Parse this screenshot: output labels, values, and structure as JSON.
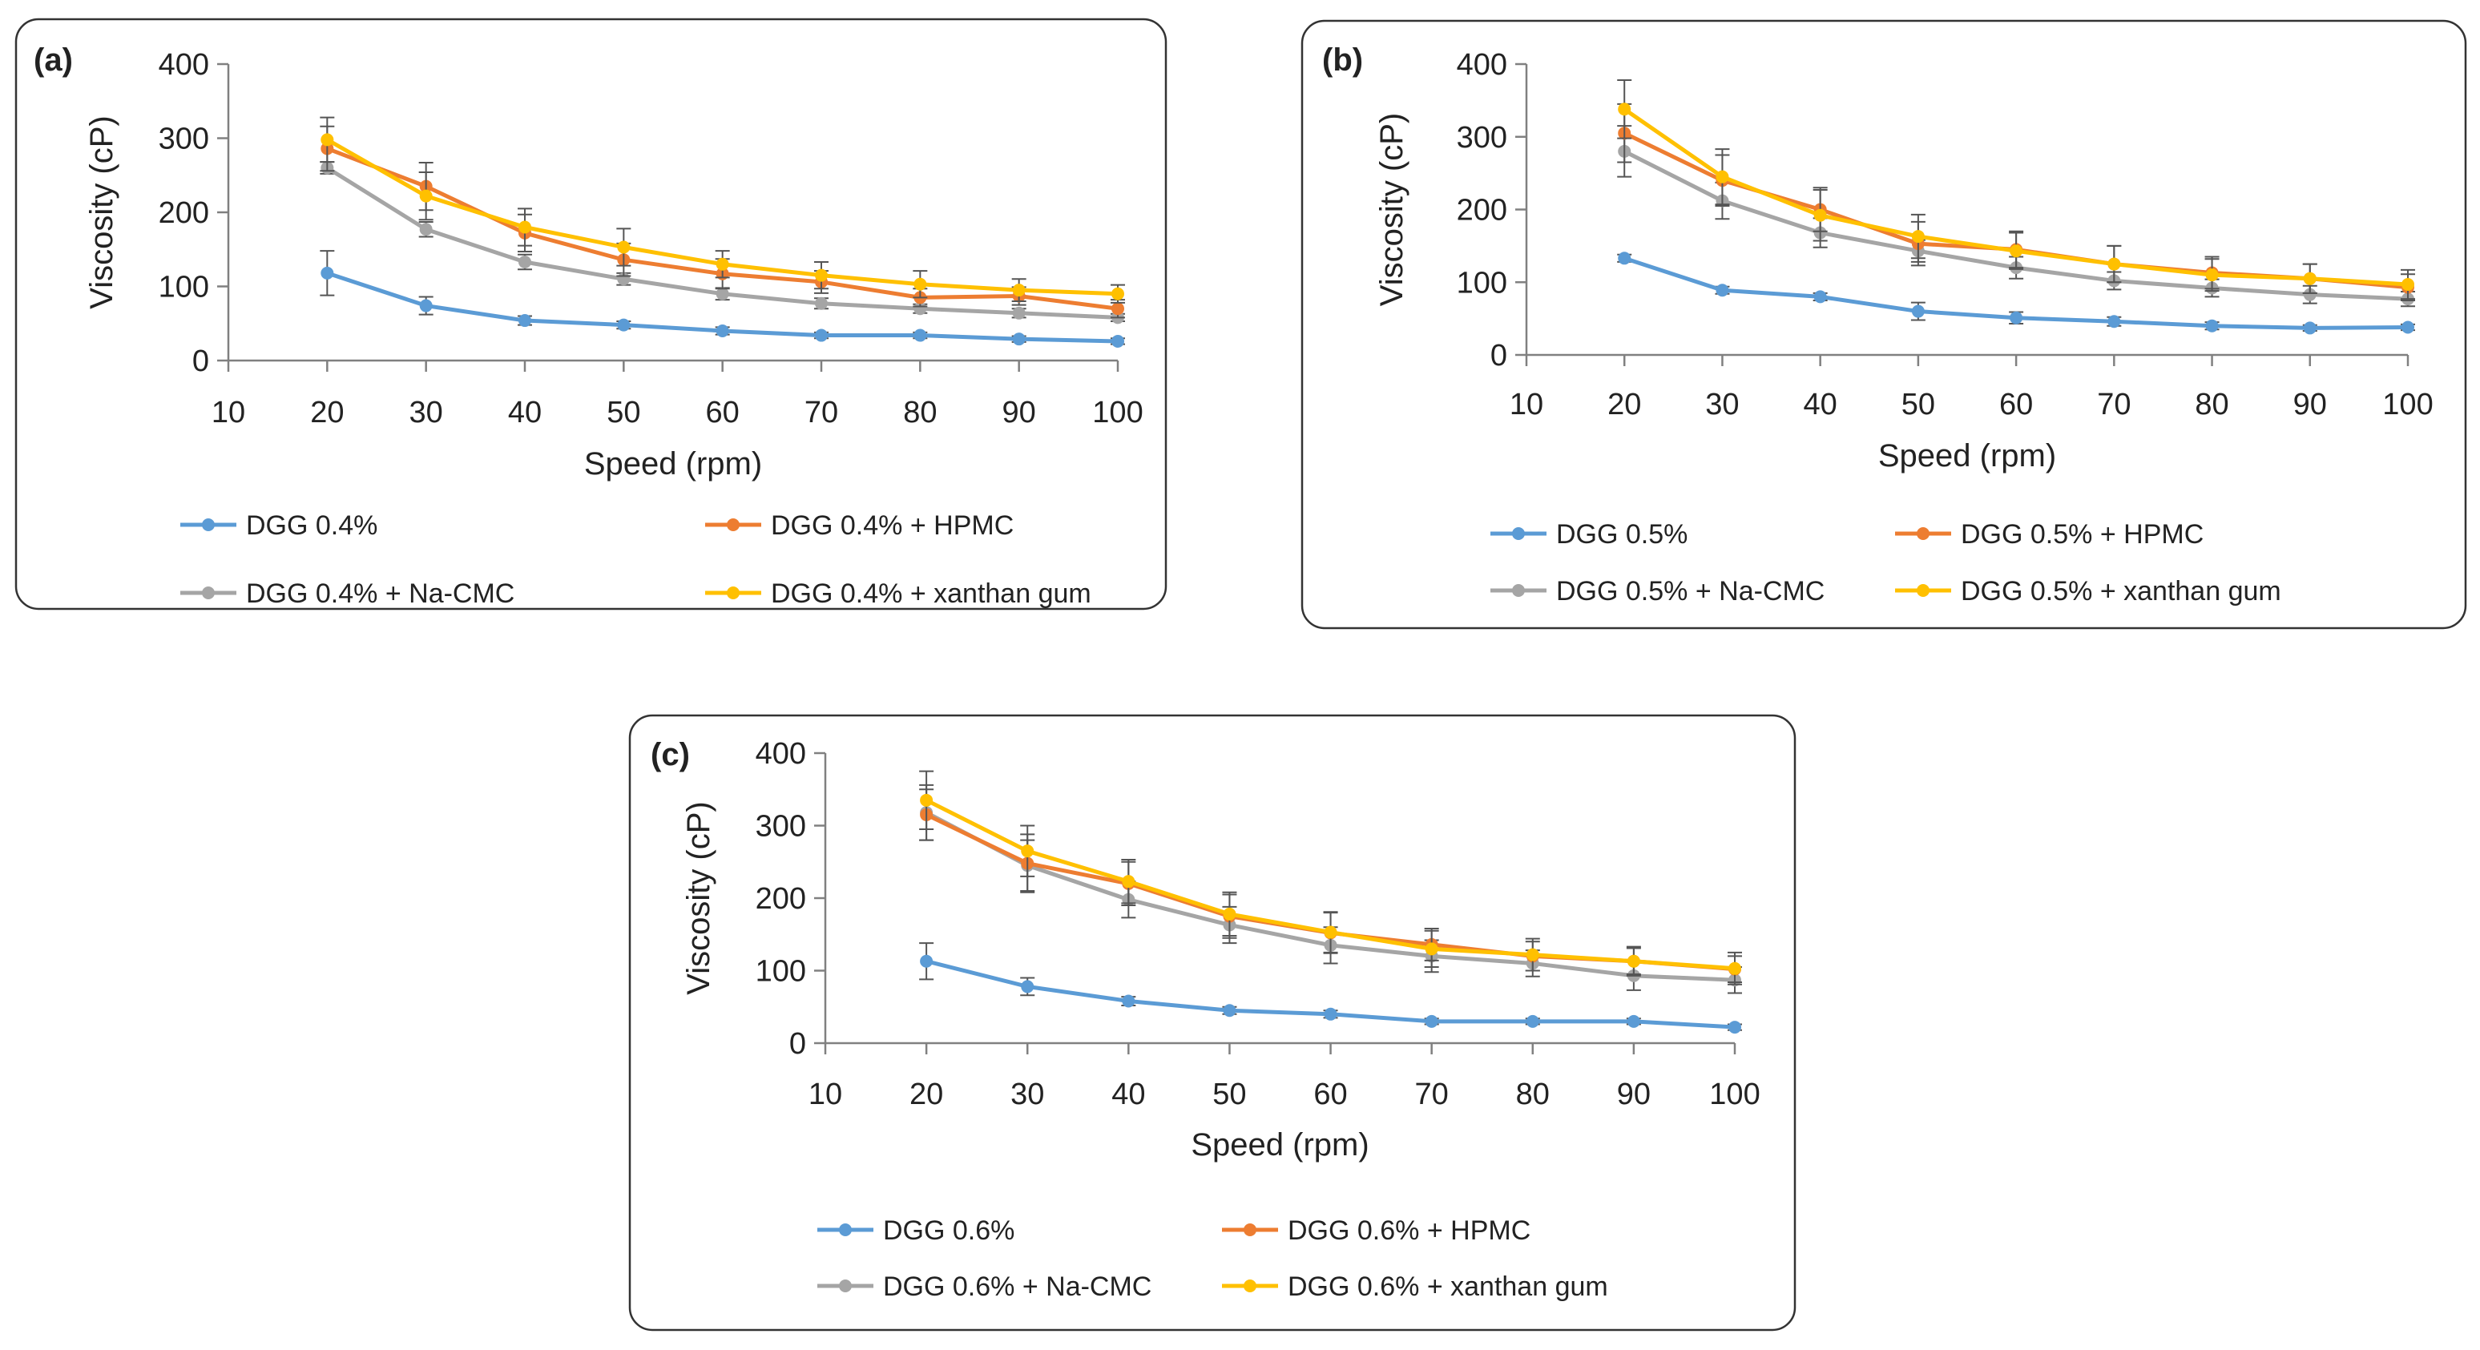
{
  "colors": {
    "series1": "#5B9BD5",
    "series2": "#ED7D31",
    "series3": "#A5A5A5",
    "series4": "#FFC000",
    "axis": "#808080",
    "text": "#222222",
    "panel_border": "#333333",
    "error_bar": "#555555"
  },
  "chart_data": [
    {
      "type": "line",
      "panel_label": "(a)",
      "xlabel": "Speed (rpm)",
      "ylabel": "Viscosity (cP)",
      "xlim": [
        10,
        100
      ],
      "ylim": [
        0,
        400
      ],
      "xticks": [
        "10",
        "20",
        "30",
        "40",
        "50",
        "60",
        "70",
        "80",
        "90",
        "100"
      ],
      "yticks": [
        "0",
        "100",
        "200",
        "300",
        "400"
      ],
      "x": [
        20,
        30,
        40,
        50,
        60,
        70,
        80,
        90,
        100
      ],
      "series": [
        {
          "name": "DGG 0.4%",
          "values": [
            118,
            74,
            54,
            48,
            40,
            34,
            34,
            29,
            26
          ],
          "errors": [
            30,
            12,
            6,
            5,
            5,
            4,
            4,
            4,
            4
          ]
        },
        {
          "name": "DGG 0.4% + HPMC",
          "values": [
            286,
            235,
            172,
            136,
            117,
            106,
            85,
            87,
            70
          ],
          "errors": [
            30,
            32,
            25,
            22,
            20,
            15,
            12,
            12,
            12
          ]
        },
        {
          "name": "DGG 0.4% + Na-CMC",
          "values": [
            260,
            177,
            133,
            110,
            90,
            77,
            70,
            64,
            58
          ],
          "errors": [
            8,
            10,
            10,
            8,
            8,
            7,
            6,
            6,
            5
          ]
        },
        {
          "name": "DGG 0.4% + xanthan gum",
          "values": [
            298,
            222,
            180,
            153,
            130,
            115,
            103,
            95,
            90
          ],
          "errors": [
            30,
            32,
            25,
            25,
            18,
            18,
            18,
            15,
            12
          ]
        }
      ]
    },
    {
      "type": "line",
      "panel_label": "(b)",
      "xlabel": "Speed (rpm)",
      "ylabel": "Viscosity (cP)",
      "xlim": [
        10,
        100
      ],
      "ylim": [
        0,
        400
      ],
      "xticks": [
        "10",
        "20",
        "30",
        "40",
        "50",
        "60",
        "70",
        "80",
        "90",
        "100"
      ],
      "yticks": [
        "0",
        "100",
        "200",
        "300",
        "400"
      ],
      "x": [
        20,
        30,
        40,
        50,
        60,
        70,
        80,
        90,
        100
      ],
      "series": [
        {
          "name": "DGG 0.5%",
          "values": [
            133,
            89,
            80,
            60,
            51,
            46,
            40,
            37,
            38
          ],
          "errors": [
            5,
            5,
            5,
            12,
            8,
            6,
            5,
            4,
            4
          ]
        },
        {
          "name": "DGG 0.5% + HPMC",
          "values": [
            305,
            240,
            200,
            153,
            145,
            125,
            113,
            105,
            93
          ],
          "errors": [
            40,
            35,
            30,
            30,
            25,
            25,
            22,
            20,
            18
          ]
        },
        {
          "name": "DGG 0.5% + Na-CMC",
          "values": [
            280,
            212,
            168,
            143,
            120,
            102,
            92,
            83,
            77
          ],
          "errors": [
            35,
            25,
            20,
            15,
            15,
            12,
            12,
            12,
            10
          ]
        },
        {
          "name": "DGG 0.5% + xanthan gum",
          "values": [
            338,
            245,
            192,
            163,
            143,
            125,
            110,
            105,
            97
          ],
          "errors": [
            40,
            38,
            35,
            30,
            25,
            25,
            22,
            20,
            20
          ]
        }
      ]
    },
    {
      "type": "line",
      "panel_label": "(c)",
      "xlabel": "Speed (rpm)",
      "ylabel": "Viscosity (cP)",
      "xlim": [
        10,
        100
      ],
      "ylim": [
        0,
        400
      ],
      "xticks": [
        "10",
        "20",
        "30",
        "40",
        "50",
        "60",
        "70",
        "80",
        "90",
        "100"
      ],
      "yticks": [
        "0",
        "100",
        "200",
        "300",
        "400"
      ],
      "x": [
        20,
        30,
        40,
        50,
        60,
        70,
        80,
        90,
        100
      ],
      "series": [
        {
          "name": "DGG 0.6%",
          "values": [
            113,
            78,
            58,
            45,
            40,
            30,
            30,
            30,
            22
          ],
          "errors": [
            25,
            12,
            6,
            5,
            5,
            4,
            4,
            4,
            4
          ]
        },
        {
          "name": "DGG 0.6% + HPMC",
          "values": [
            315,
            248,
            220,
            175,
            152,
            136,
            120,
            113,
            102
          ],
          "errors": [
            35,
            40,
            30,
            30,
            28,
            22,
            20,
            18,
            18
          ]
        },
        {
          "name": "DGG 0.6% + Na-CMC",
          "values": [
            318,
            245,
            198,
            163,
            135,
            120,
            110,
            93,
            87
          ],
          "errors": [
            38,
            35,
            25,
            25,
            25,
            22,
            18,
            20,
            18
          ]
        },
        {
          "name": "DGG 0.6% + xanthan gum",
          "values": [
            335,
            265,
            223,
            178,
            153,
            130,
            122,
            113,
            103
          ],
          "errors": [
            40,
            35,
            30,
            30,
            28,
            25,
            22,
            20,
            22
          ]
        }
      ]
    }
  ]
}
